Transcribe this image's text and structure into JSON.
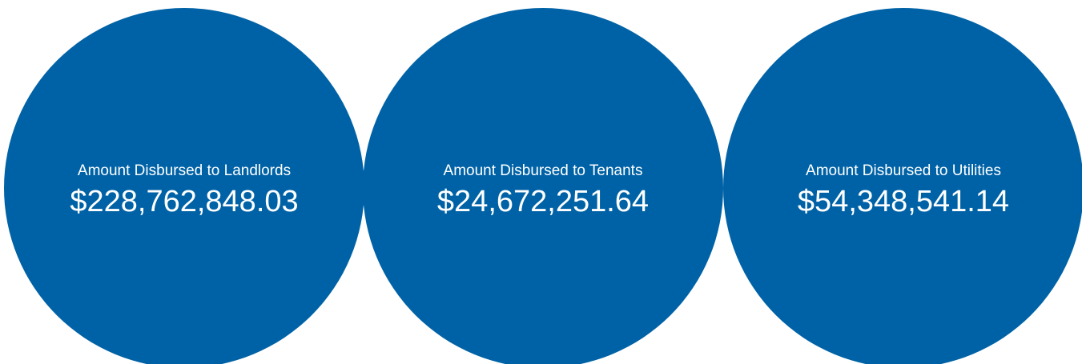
{
  "cards": [
    {
      "label": "Amount Disbursed to Landlords",
      "value": "$228,762,848.03"
    },
    {
      "label": "Amount Disbursed to Tenants",
      "value": "$24,672,251.64"
    },
    {
      "label": "Amount Disbursed to Utilities",
      "value": "$54,348,541.14"
    }
  ]
}
